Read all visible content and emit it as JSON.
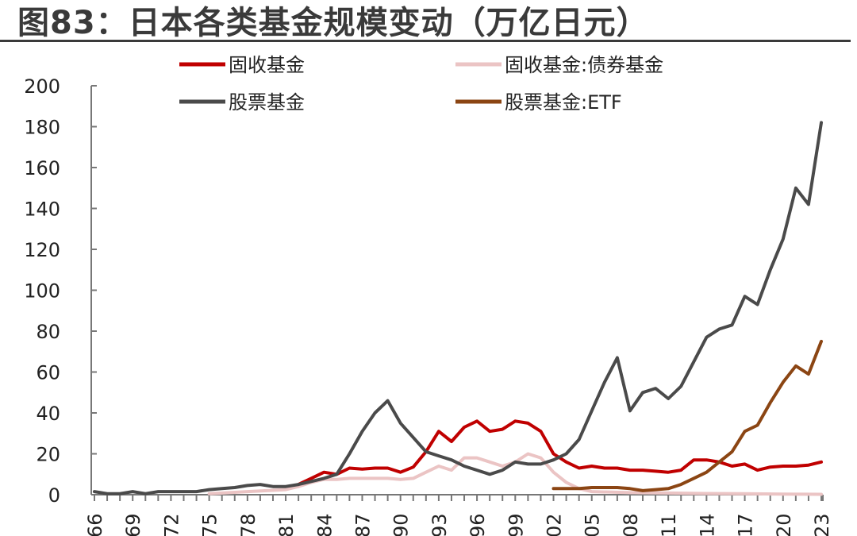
{
  "title": "图83：日本各类基金规模变动（万亿日元）",
  "chart_data": {
    "type": "line",
    "title": "图83：日本各类基金规模变动（万亿日元）",
    "xlabel": "",
    "ylabel": "",
    "ylim": [
      0,
      200
    ],
    "yticks": [
      0,
      20,
      40,
      60,
      80,
      100,
      120,
      140,
      160,
      180,
      200
    ],
    "xlim": [
      1966,
      2023
    ],
    "xtick_labels": [
      "66",
      "69",
      "72",
      "75",
      "78",
      "81",
      "84",
      "87",
      "90",
      "93",
      "96",
      "99",
      "02",
      "05",
      "08",
      "11",
      "14",
      "17",
      "20",
      "23"
    ],
    "xtick_years": [
      1966,
      1969,
      1972,
      1975,
      1978,
      1981,
      1984,
      1987,
      1990,
      1993,
      1996,
      1999,
      2002,
      2005,
      2008,
      2011,
      2014,
      2017,
      2020,
      2023
    ],
    "grid": false,
    "legend_position": "top",
    "legend": [
      "固收基金",
      "固收基金:债券基金",
      "股票基金",
      "股票基金:ETF"
    ],
    "series": [
      {
        "name": "固收基金",
        "color": "#c00000",
        "x": [
          1982,
          1983,
          1984,
          1985,
          1986,
          1987,
          1988,
          1989,
          1990,
          1991,
          1992,
          1993,
          1994,
          1995,
          1996,
          1997,
          1998,
          1999,
          2000,
          2001,
          2002,
          2003,
          2004,
          2005,
          2006,
          2007,
          2008,
          2009,
          2010,
          2011,
          2012,
          2013,
          2014,
          2015,
          2016,
          2017,
          2018,
          2019,
          2020,
          2021,
          2022,
          2023
        ],
        "values": [
          5,
          8,
          11,
          10,
          13,
          12.5,
          13,
          13,
          11,
          13.5,
          21,
          31,
          26,
          33,
          36,
          31,
          32,
          36,
          35,
          31,
          20,
          16,
          13,
          14,
          13,
          13,
          12,
          12,
          11.5,
          11,
          12,
          17,
          17,
          16,
          14,
          15,
          12,
          13.5,
          14,
          14,
          14.5,
          16
        ]
      },
      {
        "name": "固收基金:债券基金",
        "color": "#ebc4c4",
        "x": [
          1975,
          1978,
          1981,
          1982,
          1983,
          1984,
          1985,
          1986,
          1987,
          1988,
          1989,
          1990,
          1991,
          1992,
          1993,
          1994,
          1995,
          1996,
          1997,
          1998,
          1999,
          2000,
          2001,
          2002,
          2003,
          2004,
          2005,
          2008,
          2011,
          2014,
          2017,
          2020,
          2023
        ],
        "values": [
          0.5,
          1.5,
          2.5,
          4,
          6,
          7.5,
          7.5,
          8,
          8,
          8,
          8,
          7.5,
          8,
          11,
          14,
          12,
          18,
          18,
          16,
          14,
          16,
          20,
          18,
          11,
          6,
          3,
          1.5,
          1,
          0.8,
          0.6,
          0.5,
          0.3,
          0.2
        ]
      },
      {
        "name": "股票基金",
        "color": "#4a4a4a",
        "x": [
          1966,
          1967,
          1968,
          1969,
          1970,
          1971,
          1972,
          1973,
          1974,
          1975,
          1976,
          1977,
          1978,
          1979,
          1980,
          1981,
          1982,
          1983,
          1984,
          1985,
          1986,
          1987,
          1988,
          1989,
          1990,
          1991,
          1992,
          1993,
          1994,
          1995,
          1996,
          1997,
          1998,
          1999,
          2000,
          2001,
          2002,
          2003,
          2004,
          2005,
          2006,
          2007,
          2008,
          2009,
          2010,
          2011,
          2012,
          2013,
          2014,
          2015,
          2016,
          2017,
          2018,
          2019,
          2020,
          2021,
          2022,
          2023
        ],
        "values": [
          1.5,
          0.5,
          0.5,
          1.5,
          0.5,
          1.5,
          1.5,
          1.5,
          1.5,
          2.5,
          3,
          3.5,
          4.5,
          5,
          4,
          4,
          5,
          6.5,
          8,
          10,
          20,
          31,
          40,
          46,
          35,
          28,
          21,
          19,
          17,
          14,
          12,
          10,
          12,
          16,
          15,
          15,
          17,
          20,
          27,
          41,
          55,
          67,
          41,
          50,
          52,
          47,
          53,
          65,
          77,
          81,
          83,
          97,
          93,
          110,
          125,
          150,
          142,
          182
        ]
      },
      {
        "name": "股票基金:ETF",
        "color": "#8b4513",
        "x": [
          2002,
          2003,
          2004,
          2005,
          2006,
          2007,
          2008,
          2009,
          2010,
          2011,
          2012,
          2013,
          2014,
          2015,
          2016,
          2017,
          2018,
          2019,
          2020,
          2021,
          2022,
          2023
        ],
        "values": [
          3,
          3,
          3,
          3.5,
          3.5,
          3.5,
          3,
          2,
          2.5,
          3,
          5,
          8,
          11,
          16,
          21,
          31,
          34,
          45,
          55,
          63,
          59,
          75
        ]
      }
    ]
  }
}
